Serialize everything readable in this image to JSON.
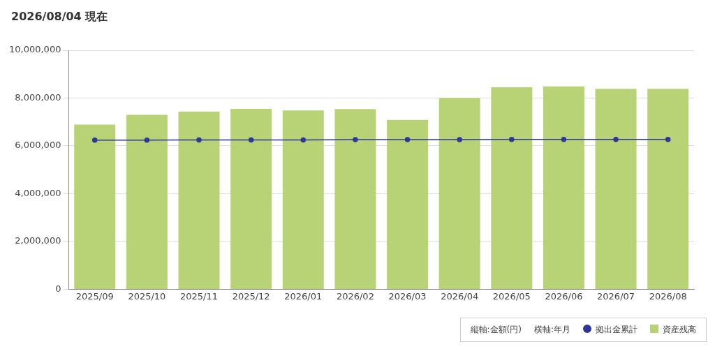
{
  "chart_data": {
    "type": "bar",
    "title": "2026/08/04 現在",
    "annotations": [
      "縦軸:金額(円)",
      "横軸:年月"
    ],
    "categories": [
      "2025/09",
      "2025/10",
      "2025/11",
      "2025/12",
      "2026/01",
      "2026/02",
      "2026/03",
      "2026/04",
      "2026/05",
      "2026/06",
      "2026/07",
      "2026/08"
    ],
    "series": [
      {
        "name": "拠出金累計",
        "type": "line",
        "color": "#2e3796",
        "marker": "circle",
        "values": [
          6240000,
          6240000,
          6250000,
          6250000,
          6250000,
          6260000,
          6260000,
          6260000,
          6270000,
          6270000,
          6270000,
          6270000
        ]
      },
      {
        "name": "資産残高",
        "color": "#b8d376",
        "values": [
          6890000,
          7300000,
          7440000,
          7550000,
          7480000,
          7540000,
          7090000,
          8010000,
          8450000,
          8490000,
          8390000,
          8390000
        ]
      }
    ],
    "ylim": [
      0,
      10000000
    ],
    "yticks": [
      {
        "value": 0,
        "label": "0"
      },
      {
        "value": 2000000,
        "label": "2,000,000"
      },
      {
        "value": 4000000,
        "label": "4,000,000"
      },
      {
        "value": 6000000,
        "label": "6,000,000"
      },
      {
        "value": 8000000,
        "label": "8,000,000"
      },
      {
        "value": 10000000,
        "label": "10,000,000"
      }
    ],
    "grid": "y",
    "legend": "bottom right"
  }
}
